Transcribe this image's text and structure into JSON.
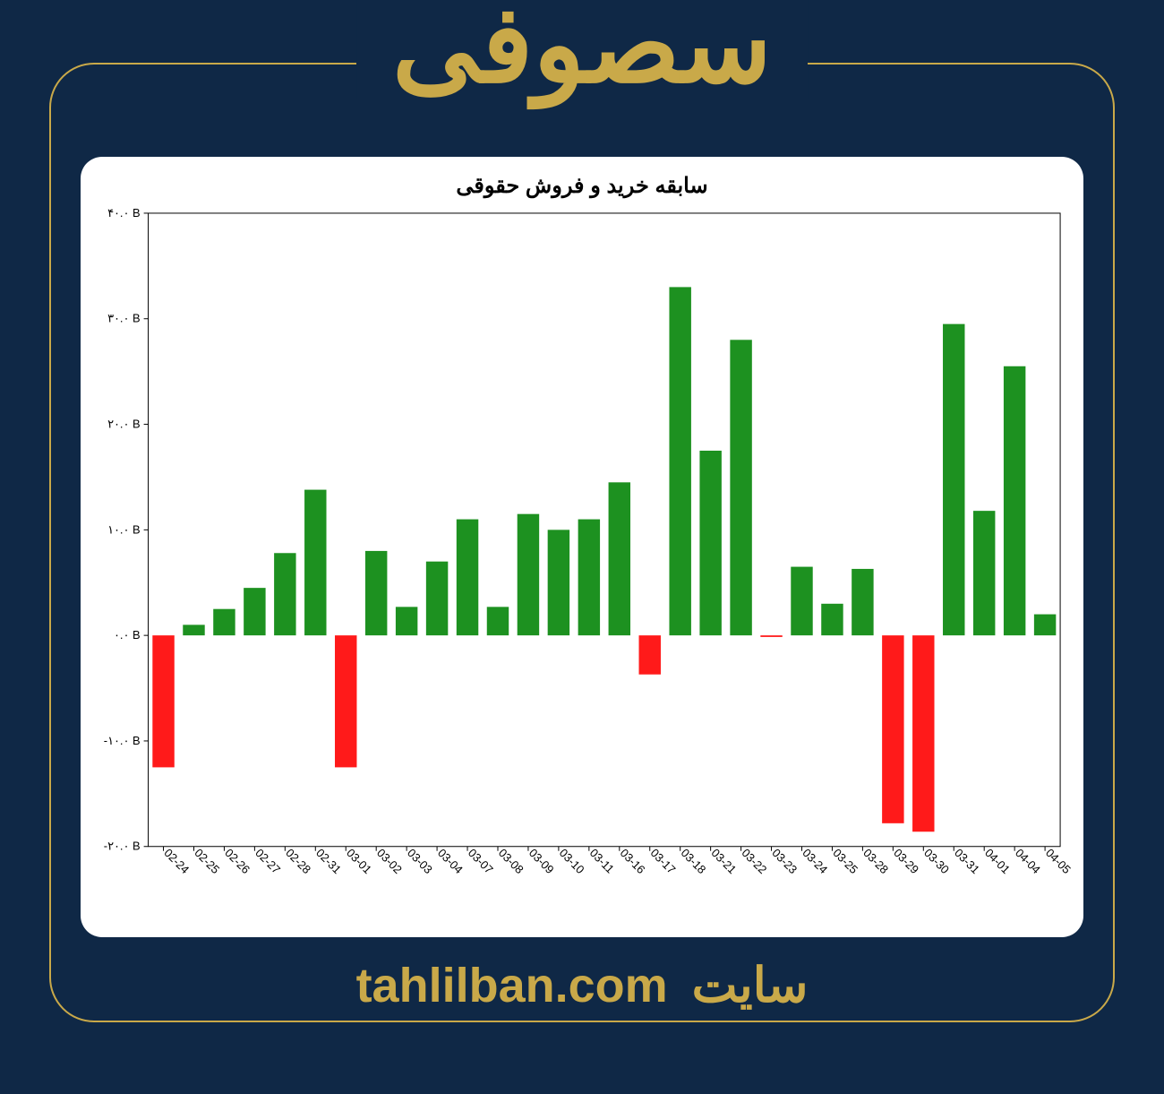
{
  "page": {
    "background_color": "#0f2846",
    "border_color": "#c9a949",
    "header_title": "سصوفی",
    "header_color": "#c9a949",
    "header_fontsize": 120,
    "footer_site_label": "سایت",
    "footer_domain": "tahlilban.com",
    "footer_color": "#c9a949",
    "footer_fontsize": 54
  },
  "chart": {
    "type": "bar",
    "title": "سابقه خرید و فروش حقوقی",
    "title_fontsize": 24,
    "title_color": "#000000",
    "background_color": "#ffffff",
    "plot_border_color": "#000000",
    "grid": false,
    "positive_color": "#1d9120",
    "negative_color": "#ff1a1a",
    "axis_font_color": "#000000",
    "axis_fontsize": 13,
    "xlabel_rotation_deg": 45,
    "bar_width_ratio": 0.72,
    "y": {
      "unit_suffix": " B",
      "ylim": [
        -20,
        40
      ],
      "ticks": [
        -20,
        -10,
        0,
        10,
        20,
        30,
        40
      ],
      "tick_labels_raw": [
        "-۲۰.۰",
        "-۱۰.۰",
        "۰.۰",
        "۱۰.۰",
        "۲۰.۰",
        "۳۰.۰",
        "۴۰.۰"
      ]
    },
    "categories": [
      "02-24",
      "02-25",
      "02-26",
      "02-27",
      "02-28",
      "02-31",
      "03-01",
      "03-02",
      "03-03",
      "03-04",
      "03-07",
      "03-08",
      "03-09",
      "03-10",
      "03-11",
      "03-16",
      "03-17",
      "03-18",
      "03-21",
      "03-22",
      "03-23",
      "03-24",
      "03-25",
      "03-28",
      "03-29",
      "03-30",
      "03-31",
      "04-01",
      "04-04",
      "04-05"
    ],
    "values": [
      -12.5,
      1.0,
      2.5,
      4.5,
      7.8,
      13.8,
      -12.5,
      8.0,
      2.7,
      7.0,
      11.0,
      2.7,
      11.5,
      10.0,
      11.0,
      14.5,
      -3.7,
      33.0,
      17.5,
      28.0,
      -0.15,
      6.5,
      3.0,
      6.3,
      -17.8,
      -18.6,
      29.5,
      11.8,
      25.5,
      2.0
    ]
  }
}
